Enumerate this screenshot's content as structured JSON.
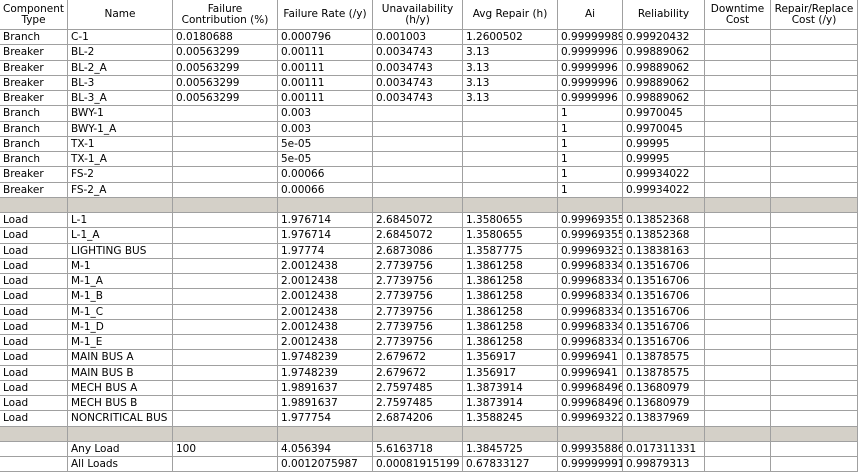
{
  "table": {
    "columns": [
      "Component Type",
      "Name",
      "Failure Contribution (%)",
      "Failure Rate (/y)",
      "Unavailability (h/y)",
      "Avg Repair (h)",
      "Ai",
      "Reliability",
      "Downtime Cost",
      "Repair/Replace Cost (/y)"
    ],
    "sections": [
      {
        "rows": [
          {
            "type": "Branch",
            "name": "C-1",
            "contribution": "0.0180688",
            "rate": "0.000796",
            "unavailability": "0.001003",
            "repair": "1.2600502",
            "ai": "0.99999989",
            "reliability": "0.99920432"
          },
          {
            "type": "Breaker",
            "name": "BL-2",
            "contribution": "0.00563299",
            "rate": "0.00111",
            "unavailability": "0.0034743",
            "repair": "3.13",
            "ai": "0.9999996",
            "reliability": "0.99889062"
          },
          {
            "type": "Breaker",
            "name": "BL-2_A",
            "contribution": "0.00563299",
            "rate": "0.00111",
            "unavailability": "0.0034743",
            "repair": "3.13",
            "ai": "0.9999996",
            "reliability": "0.99889062"
          },
          {
            "type": "Breaker",
            "name": "BL-3",
            "contribution": "0.00563299",
            "rate": "0.00111",
            "unavailability": "0.0034743",
            "repair": "3.13",
            "ai": "0.9999996",
            "reliability": "0.99889062"
          },
          {
            "type": "Breaker",
            "name": "BL-3_A",
            "contribution": "0.00563299",
            "rate": "0.00111",
            "unavailability": "0.0034743",
            "repair": "3.13",
            "ai": "0.9999996",
            "reliability": "0.99889062"
          },
          {
            "type": "Branch",
            "name": "BWY-1",
            "rate": "0.003",
            "ai": "1",
            "reliability": "0.9970045"
          },
          {
            "type": "Branch",
            "name": "BWY-1_A",
            "rate": "0.003",
            "ai": "1",
            "reliability": "0.9970045"
          },
          {
            "type": "Branch",
            "name": "TX-1",
            "rate": "5e-05",
            "ai": "1",
            "reliability": "0.99995"
          },
          {
            "type": "Branch",
            "name": "TX-1_A",
            "rate": "5e-05",
            "ai": "1",
            "reliability": "0.99995"
          },
          {
            "type": "Breaker",
            "name": "FS-2",
            "rate": "0.00066",
            "ai": "1",
            "reliability": "0.99934022"
          },
          {
            "type": "Breaker",
            "name": "FS-2_A",
            "rate": "0.00066",
            "ai": "1",
            "reliability": "0.99934022"
          }
        ]
      },
      {
        "rows": [
          {
            "type": "Load",
            "name": "L-1",
            "rate": "1.976714",
            "unavailability": "2.6845072",
            "repair": "1.3580655",
            "ai": "0.99969355",
            "reliability": "0.13852368"
          },
          {
            "type": "Load",
            "name": "L-1_A",
            "rate": "1.976714",
            "unavailability": "2.6845072",
            "repair": "1.3580655",
            "ai": "0.99969355",
            "reliability": "0.13852368"
          },
          {
            "type": "Load",
            "name": "LIGHTING BUS",
            "rate": "1.97774",
            "unavailability": "2.6873086",
            "repair": "1.3587775",
            "ai": "0.99969323",
            "reliability": "0.13838163"
          },
          {
            "type": "Load",
            "name": "M-1",
            "rate": "2.0012438",
            "unavailability": "2.7739756",
            "repair": "1.3861258",
            "ai": "0.99968334",
            "reliability": "0.13516706"
          },
          {
            "type": "Load",
            "name": "M-1_A",
            "rate": "2.0012438",
            "unavailability": "2.7739756",
            "repair": "1.3861258",
            "ai": "0.99968334",
            "reliability": "0.13516706"
          },
          {
            "type": "Load",
            "name": "M-1_B",
            "rate": "2.0012438",
            "unavailability": "2.7739756",
            "repair": "1.3861258",
            "ai": "0.99968334",
            "reliability": "0.13516706"
          },
          {
            "type": "Load",
            "name": "M-1_C",
            "rate": "2.0012438",
            "unavailability": "2.7739756",
            "repair": "1.3861258",
            "ai": "0.99968334",
            "reliability": "0.13516706"
          },
          {
            "type": "Load",
            "name": "M-1_D",
            "rate": "2.0012438",
            "unavailability": "2.7739756",
            "repair": "1.3861258",
            "ai": "0.99968334",
            "reliability": "0.13516706"
          },
          {
            "type": "Load",
            "name": "M-1_E",
            "rate": "2.0012438",
            "unavailability": "2.7739756",
            "repair": "1.3861258",
            "ai": "0.99968334",
            "reliability": "0.13516706"
          },
          {
            "type": "Load",
            "name": "MAIN BUS A",
            "rate": "1.9748239",
            "unavailability": "2.679672",
            "repair": "1.356917",
            "ai": "0.9996941",
            "reliability": "0.13878575"
          },
          {
            "type": "Load",
            "name": "MAIN BUS B",
            "rate": "1.9748239",
            "unavailability": "2.679672",
            "repair": "1.356917",
            "ai": "0.9996941",
            "reliability": "0.13878575"
          },
          {
            "type": "Load",
            "name": "MECH BUS A",
            "rate": "1.9891637",
            "unavailability": "2.7597485",
            "repair": "1.3873914",
            "ai": "0.99968496",
            "reliability": "0.13680979"
          },
          {
            "type": "Load",
            "name": "MECH BUS B",
            "rate": "1.9891637",
            "unavailability": "2.7597485",
            "repair": "1.3873914",
            "ai": "0.99968496",
            "reliability": "0.13680979"
          },
          {
            "type": "Load",
            "name": "NONCRITICAL BUS",
            "rate": "1.977754",
            "unavailability": "2.6874206",
            "repair": "1.3588245",
            "ai": "0.99969322",
            "reliability": "0.13837969"
          }
        ]
      },
      {
        "rows": [
          {
            "name": "Any Load",
            "contribution": "100",
            "rate": "4.056394",
            "unavailability": "5.6163718",
            "repair": "1.3845725",
            "ai": "0.99935886",
            "reliability": "0.017311331"
          },
          {
            "name": "All Loads",
            "rate": "0.0012075987",
            "unavailability": "0.00081915199",
            "repair": "0.67833127",
            "ai": "0.99999991",
            "reliability": "0.99879313"
          }
        ]
      }
    ]
  }
}
